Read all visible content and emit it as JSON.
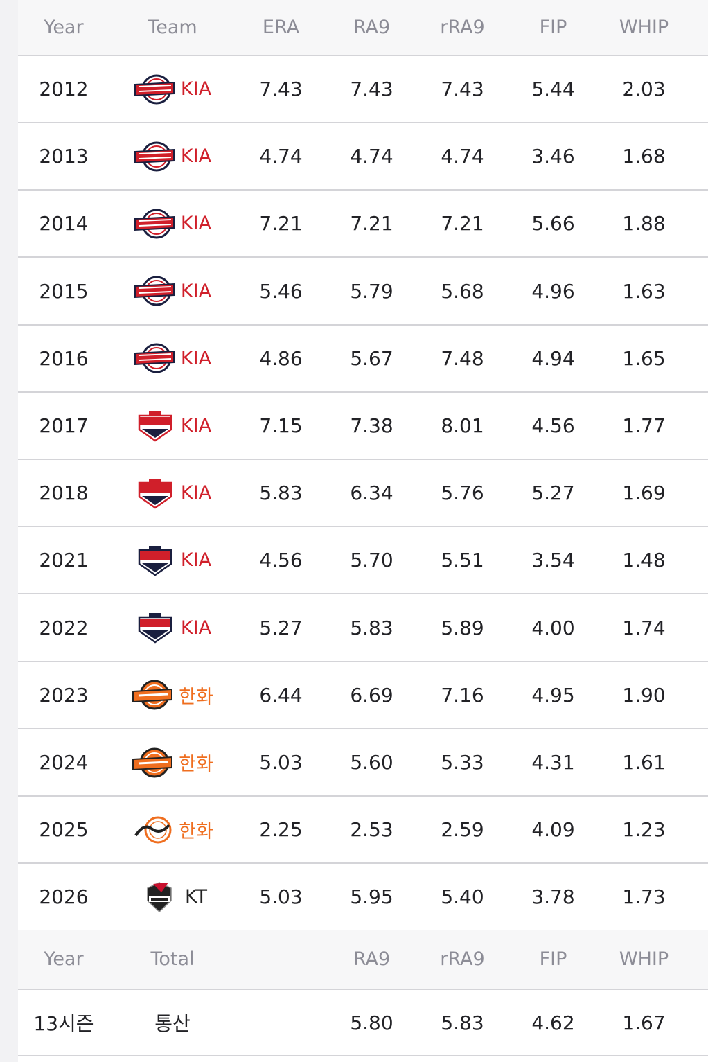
{
  "headers": {
    "year": "Year",
    "team": "Team",
    "era": "ERA",
    "ra9": "RA9",
    "rra9": "rRA9",
    "fip": "FIP",
    "whip": "WHIP"
  },
  "rows": [
    {
      "year": "2012",
      "team": "KIA",
      "logo": "tigers-classic-logo",
      "team_color": "#d01f2a",
      "era": "7.43",
      "ra9": "7.43",
      "rra9": "7.43",
      "fip": "5.44",
      "whip": "2.03"
    },
    {
      "year": "2013",
      "team": "KIA",
      "logo": "tigers-classic-logo",
      "team_color": "#d01f2a",
      "era": "4.74",
      "ra9": "4.74",
      "rra9": "4.74",
      "fip": "3.46",
      "whip": "1.68"
    },
    {
      "year": "2014",
      "team": "KIA",
      "logo": "tigers-classic-logo",
      "team_color": "#d01f2a",
      "era": "7.21",
      "ra9": "7.21",
      "rra9": "7.21",
      "fip": "5.66",
      "whip": "1.88"
    },
    {
      "year": "2015",
      "team": "KIA",
      "logo": "tigers-classic-logo",
      "team_color": "#d01f2a",
      "era": "5.46",
      "ra9": "5.79",
      "rra9": "5.68",
      "fip": "4.96",
      "whip": "1.63"
    },
    {
      "year": "2016",
      "team": "KIA",
      "logo": "tigers-classic-logo",
      "team_color": "#d01f2a",
      "era": "4.86",
      "ra9": "5.67",
      "rra9": "7.48",
      "fip": "4.94",
      "whip": "1.65"
    },
    {
      "year": "2017",
      "team": "KIA",
      "logo": "tigers-shield-logo",
      "team_color": "#d01f2a",
      "era": "7.15",
      "ra9": "7.38",
      "rra9": "8.01",
      "fip": "4.56",
      "whip": "1.77"
    },
    {
      "year": "2018",
      "team": "KIA",
      "logo": "tigers-shield-logo",
      "team_color": "#d01f2a",
      "era": "5.83",
      "ra9": "6.34",
      "rra9": "5.76",
      "fip": "5.27",
      "whip": "1.69"
    },
    {
      "year": "2021",
      "team": "KIA",
      "logo": "tigers-shield-dark-logo",
      "team_color": "#d01f2a",
      "era": "4.56",
      "ra9": "5.70",
      "rra9": "5.51",
      "fip": "3.54",
      "whip": "1.48"
    },
    {
      "year": "2022",
      "team": "KIA",
      "logo": "tigers-shield-dark-logo",
      "team_color": "#d01f2a",
      "era": "5.27",
      "ra9": "5.83",
      "rra9": "5.89",
      "fip": "4.00",
      "whip": "1.74"
    },
    {
      "year": "2023",
      "team": "한화",
      "logo": "eagles-classic-logo",
      "team_color": "#ef6e1f",
      "era": "6.44",
      "ra9": "6.69",
      "rra9": "7.16",
      "fip": "4.95",
      "whip": "1.90"
    },
    {
      "year": "2024",
      "team": "한화",
      "logo": "eagles-classic-logo",
      "team_color": "#ef6e1f",
      "era": "5.03",
      "ra9": "5.60",
      "rra9": "5.33",
      "fip": "4.31",
      "whip": "1.61"
    },
    {
      "year": "2025",
      "team": "한화",
      "logo": "eagles-new-logo",
      "team_color": "#ef6e1f",
      "era": "2.25",
      "ra9": "2.53",
      "rra9": "2.59",
      "fip": "4.09",
      "whip": "1.23"
    },
    {
      "year": "2026",
      "team": "KT",
      "logo": "ktwiz-logo",
      "team_color": "#222222",
      "era": "5.03",
      "ra9": "5.95",
      "rra9": "5.40",
      "fip": "3.78",
      "whip": "1.73"
    }
  ],
  "total_headers": {
    "year": "Year",
    "total": "Total",
    "ra9": "RA9",
    "rra9": "rRA9",
    "fip": "FIP",
    "whip": "WHIP"
  },
  "total_row": {
    "year": "13시즌",
    "label": "통산",
    "ra9": "5.80",
    "rra9": "5.83",
    "fip": "4.62",
    "whip": "1.67"
  }
}
